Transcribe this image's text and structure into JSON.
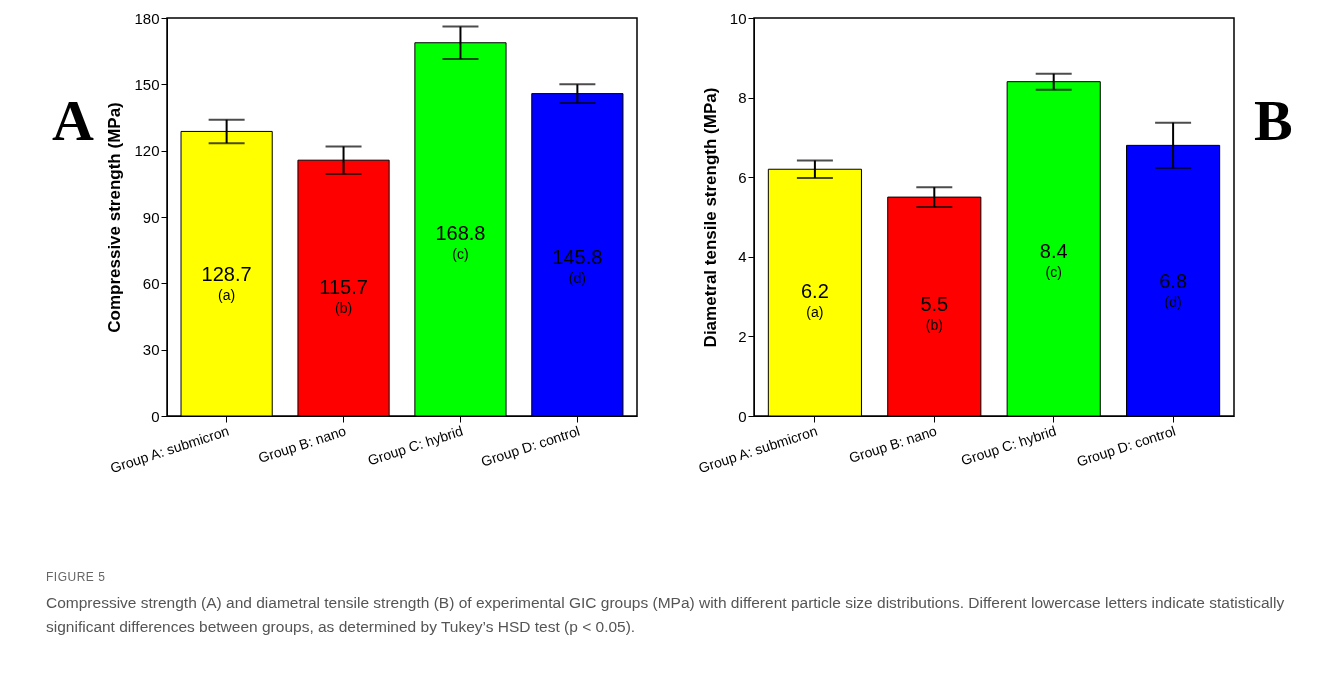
{
  "chart_data": [
    {
      "type": "bar",
      "ylabel": "Compressive strength (MPa)",
      "categories": [
        "Group A: submicron",
        "Group B: nano",
        "Group C: hybrid",
        "Group D: control"
      ],
      "values": [
        128.7,
        115.7,
        168.8,
        145.8
      ],
      "colors": [
        "#ffff00",
        "#ff0000",
        "#00ff00",
        "#0000ff"
      ],
      "errors": [
        5.3,
        6.2,
        7.3,
        4.2
      ],
      "ylim": [
        0,
        180
      ],
      "yticks": [
        0,
        30,
        60,
        90,
        120,
        150,
        180
      ],
      "data_labels": true,
      "annotations": [
        "A",
        "(a)",
        "(b)",
        "(c)",
        "(d)",
        "FIGURE 5",
        "Compressive strength (A) and diametral tensile strength (B) of experimental GIC groups (MPa) with different particle size distributions. Different lowercase letters indicate statistically significant differences between groups, as determined by Tukey’s HSD test (p < 0.05)."
      ]
    },
    {
      "type": "bar",
      "ylabel": "Diametral tensile strength (MPa)",
      "categories": [
        "Group A: submicron",
        "Group B: nano",
        "Group C: hybrid",
        "Group D: control"
      ],
      "values": [
        6.2,
        5.5,
        8.4,
        6.8
      ],
      "colors": [
        "#ffff00",
        "#ff0000",
        "#00ff00",
        "#0000ff"
      ],
      "errors": [
        0.22,
        0.25,
        0.2,
        0.57
      ],
      "ylim": [
        0,
        10
      ],
      "yticks": [
        0,
        2,
        4,
        6,
        8,
        10
      ],
      "data_labels": true,
      "annotations": [
        "B",
        "(a)",
        "(b)",
        "(c)",
        "(d)"
      ]
    }
  ]
}
